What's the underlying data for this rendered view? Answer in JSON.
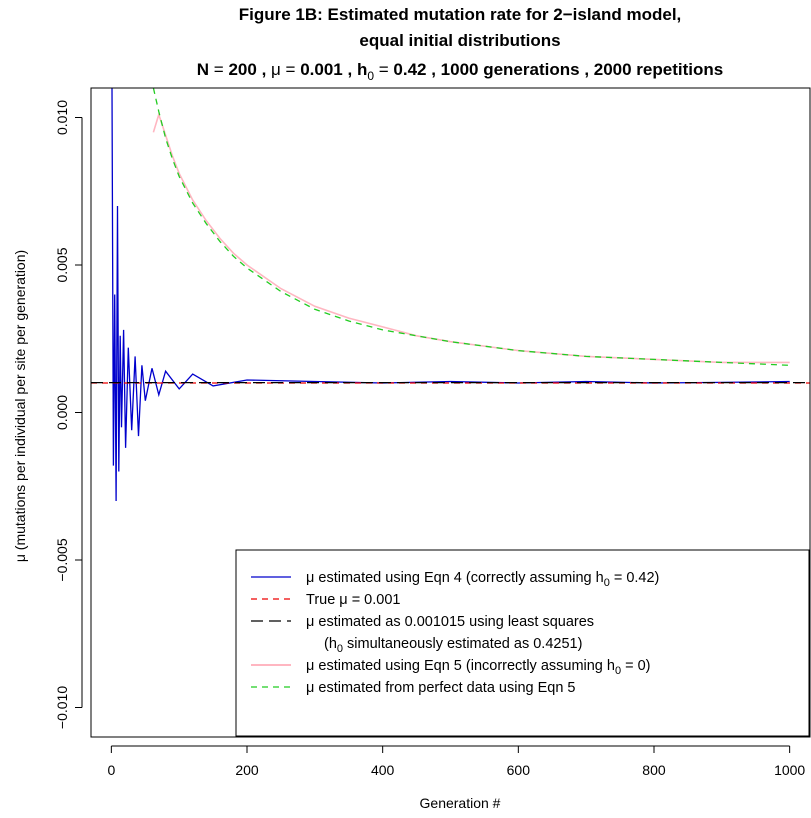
{
  "chart_data": {
    "type": "line",
    "title_line1": "Figure 1B: Estimated mutation rate for 2−island model,",
    "title_line2": "equal initial distributions",
    "title_line3": {
      "n_label": "N",
      "n_value": "200",
      "mu_symbol": "μ",
      "mu_value": "0.001",
      "h_label": "h",
      "h_sub": "0",
      "h_value": "0.42",
      "generations": "1000 generations",
      "repetitions": "2000 repetitions"
    },
    "xlabel": "Generation #",
    "ylabel": "μ (mutations per individual per site per generation)",
    "xlim": [
      -30,
      1030
    ],
    "ylim": [
      -0.011,
      0.011
    ],
    "x_ticks": [
      0,
      200,
      400,
      600,
      800,
      1000
    ],
    "x_tick_labels": [
      "0",
      "200",
      "400",
      "600",
      "800",
      "1000"
    ],
    "y_ticks": [
      -0.01,
      -0.005,
      0,
      0.005,
      0.01
    ],
    "y_tick_labels": [
      "−0.010",
      "−0.005",
      "0.000",
      "0.005",
      "0.010"
    ],
    "true_mu": 0.001,
    "lsq_mu": 0.001015,
    "lsq_h0": 0.4251,
    "assumed_h0": 0.42,
    "series": [
      {
        "name": "μ estimated using Eqn 4 (correctly assuming h0 = 0.42)",
        "color": "#0000cc",
        "style": "solid",
        "x": [
          1,
          3,
          5,
          7,
          9,
          11,
          13,
          15,
          18,
          21,
          25,
          30,
          35,
          40,
          45,
          50,
          60,
          70,
          80,
          100,
          120,
          150,
          200,
          300,
          400,
          500,
          600,
          700,
          800,
          900,
          1000
        ],
        "values": [
          0.011,
          -0.0018,
          0.004,
          -0.003,
          0.007,
          -0.002,
          0.0026,
          -0.0005,
          0.0028,
          -0.0012,
          0.0022,
          -0.0006,
          0.0019,
          -0.0008,
          0.0016,
          0.0004,
          0.0015,
          0.0006,
          0.0014,
          0.0008,
          0.0013,
          0.0009,
          0.0011,
          0.00105,
          0.001,
          0.00105,
          0.001,
          0.00105,
          0.001,
          0.00102,
          0.00105
        ]
      },
      {
        "name": "True μ = 0.001",
        "color": "#ee0000",
        "style": "dashed",
        "x": [
          -30,
          1030
        ],
        "values": [
          0.001,
          0.001
        ]
      },
      {
        "name": "μ estimated as 0.001015 using least squares",
        "color": "#000000",
        "style": "longdash",
        "x": [
          -30,
          1030
        ],
        "values": [
          0.001015,
          0.001015
        ]
      },
      {
        "name": "μ estimated using Eqn 5 (incorrectly assuming h0 = 0)",
        "color": "#ffb6c1",
        "style": "solid",
        "x": [
          62,
          70,
          80,
          90,
          100,
          120,
          140,
          160,
          180,
          200,
          250,
          300,
          350,
          400,
          450,
          500,
          600,
          700,
          800,
          900,
          1000
        ],
        "values": [
          0.0095,
          0.0101,
          0.0094,
          0.0087,
          0.0081,
          0.0072,
          0.0065,
          0.0059,
          0.0054,
          0.005,
          0.0042,
          0.0036,
          0.0032,
          0.0029,
          0.0026,
          0.0024,
          0.0021,
          0.0019,
          0.0018,
          0.0017,
          0.0017
        ]
      },
      {
        "name": "μ estimated from perfect data using Eqn 5",
        "color": "#22cc22",
        "style": "dashed",
        "x": [
          62,
          70,
          80,
          90,
          100,
          120,
          140,
          160,
          180,
          200,
          250,
          300,
          350,
          400,
          450,
          500,
          600,
          700,
          800,
          900,
          1000
        ],
        "values": [
          0.011,
          0.0102,
          0.0093,
          0.0086,
          0.008,
          0.0071,
          0.0064,
          0.0058,
          0.0053,
          0.0049,
          0.0041,
          0.0035,
          0.0031,
          0.0028,
          0.0026,
          0.0024,
          0.0021,
          0.0019,
          0.0018,
          0.0017,
          0.0016
        ]
      }
    ],
    "legend": {
      "placement": "bottom-right",
      "entries": [
        {
          "text": "μ estimated using Eqn 4 (correctly assuming h",
          "sub": "0",
          "suffix": " = 0.42)",
          "color": "#0000cc",
          "style": "solid"
        },
        {
          "text": "True μ = 0.001",
          "sub": "",
          "suffix": "",
          "color": "#ee0000",
          "style": "dashed"
        },
        {
          "text": "μ estimated as 0.001015 using least squares",
          "sub": "",
          "suffix": "",
          "color": "#000000",
          "style": "longdash"
        },
        {
          "text": "(h",
          "sub": "0",
          "suffix": " simultaneously estimated as 0.4251)",
          "color": "",
          "style": "none"
        },
        {
          "text": "μ estimated using Eqn 5 (incorrectly assuming h",
          "sub": "0",
          "suffix": " = 0)",
          "color": "#ffb6c1",
          "style": "solid"
        },
        {
          "text": "μ estimated from perfect data using Eqn 5",
          "sub": "",
          "suffix": "",
          "color": "#22cc22",
          "style": "dashed"
        }
      ]
    }
  }
}
